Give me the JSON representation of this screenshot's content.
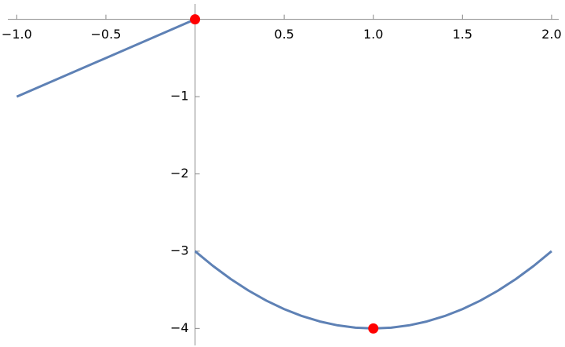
{
  "chart_data": {
    "type": "line",
    "x": [
      -1,
      0,
      0,
      0,
      0.1,
      0.2,
      0.3,
      0.4,
      0.5,
      0.6,
      0.7,
      0.8,
      0.9,
      1,
      1.1,
      1.2,
      1.3,
      1.4,
      1.5,
      1.6,
      1.7,
      1.8,
      1.9,
      2
    ],
    "series": [
      {
        "color": "#5e81b5",
        "values": [
          -1,
          0,
          null,
          -3,
          -3.19,
          -3.36,
          -3.51,
          -3.64,
          -3.75,
          -3.84,
          -3.91,
          -3.96,
          -3.99,
          -4,
          -3.99,
          -3.96,
          -3.91,
          -3.84,
          -3.75,
          -3.64,
          -3.51,
          -3.36,
          -3.19,
          -3
        ]
      }
    ],
    "points": {
      "color": "#ff0000",
      "x": [
        0,
        1
      ],
      "values": [
        0,
        -4
      ]
    },
    "xlim": [
      -1.05,
      2.04
    ],
    "ylim": [
      -4.22,
      0.2
    ],
    "xticks": [
      {
        "value": -1,
        "label": "−1.0"
      },
      {
        "value": -0.5,
        "label": "−0.5"
      },
      {
        "value": 0.5,
        "label": "0.5"
      },
      {
        "value": 1,
        "label": "1.0"
      },
      {
        "value": 1.5,
        "label": "1.5"
      },
      {
        "value": 2,
        "label": "2.0"
      }
    ],
    "yticks": [
      {
        "value": -1,
        "label": "−1"
      },
      {
        "value": -2,
        "label": "−2"
      },
      {
        "value": -3,
        "label": "−3"
      },
      {
        "value": -4,
        "label": "−4"
      }
    ]
  }
}
